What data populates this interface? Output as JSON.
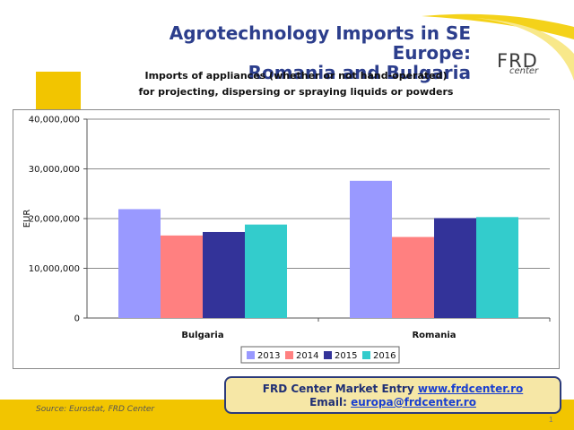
{
  "slide": {
    "title_line1": "Agrotechnology Imports in SE Europe:",
    "title_line2": "Romania and Bulgaria",
    "subtitle_line1": "Imports of appliances (whether or not hand-operated)",
    "subtitle_line2": "for projecting, dispersing or spraying liquids or powders",
    "logo_main": "FRD",
    "logo_sub": "center",
    "source": "Source: Eurostat, FRD Center",
    "contact_line1_text": "FRD Center Market Entry ",
    "contact_link1": "www.frdcenter.ro",
    "contact_line2_text": "Email: ",
    "contact_link2": "europa@frdcenter.ro",
    "page_number": "1"
  },
  "colors": {
    "accent_yellow": "#f2c500",
    "title_blue": "#2c3e8c"
  },
  "chart_data": {
    "type": "bar",
    "title": "",
    "xlabel": "",
    "ylabel": "EUR",
    "ylim": [
      0,
      40000000
    ],
    "yticks": [
      0,
      10000000,
      20000000,
      30000000,
      40000000
    ],
    "ytick_labels": [
      "0",
      "10,000,000",
      "20,000,000",
      "30,000,000",
      "40,000,000"
    ],
    "grid": true,
    "legend": "bottom",
    "categories": [
      "Bulgaria",
      "Romania"
    ],
    "series": [
      {
        "name": "2013",
        "color": "#9999ff",
        "values": [
          21900000,
          27600000
        ]
      },
      {
        "name": "2014",
        "color": "#ff8080",
        "values": [
          16600000,
          16300000
        ]
      },
      {
        "name": "2015",
        "color": "#333399",
        "values": [
          17300000,
          20100000
        ]
      },
      {
        "name": "2016",
        "color": "#33cccc",
        "values": [
          18800000,
          20300000
        ]
      }
    ]
  }
}
